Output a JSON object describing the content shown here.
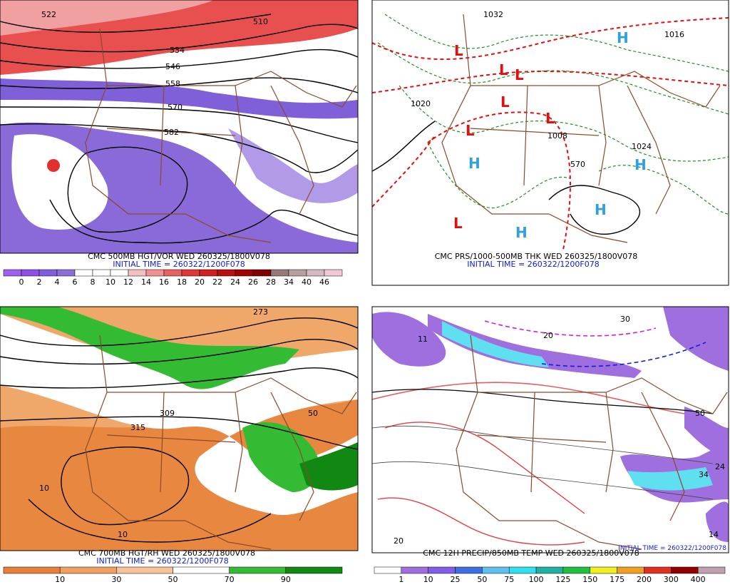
{
  "panels": [
    {
      "title": "CMC 500MB HGT/VOR WED 260325/1800V078",
      "initial_time": "INITIAL TIME = 260322/1200F078",
      "legend": {
        "colors": [
          "#9f5fef",
          "#8f4fe7",
          "#7f5fdf",
          "#8a6fd8",
          "#ffffff",
          "#ffffff",
          "#ffffff",
          "#f2c0c0",
          "#f09090",
          "#e86060",
          "#e03838",
          "#d02020",
          "#b81010",
          "#a00000",
          "#800000",
          "#987878",
          "#b8a0a0",
          "#d8b8c0",
          "#f0c8d8"
        ],
        "labels": [
          0,
          2,
          4,
          6,
          8,
          10,
          12,
          14,
          16,
          18,
          20,
          22,
          24,
          26,
          28,
          34,
          40,
          46
        ]
      },
      "map_labels": [
        "522",
        "510",
        "534",
        "546",
        "558",
        "570",
        "582"
      ]
    },
    {
      "title": "CMC PRS/1000-500MB THK WED 260325/1800V078",
      "initial_time": "INITIAL TIME = 260322/1200F078",
      "map_labels": [
        "L",
        "L",
        "L",
        "L",
        "L",
        "L",
        "L",
        "H",
        "H",
        "H",
        "H",
        "H",
        "1032",
        "1016",
        "1024",
        "1008",
        "570",
        "1020"
      ]
    },
    {
      "title": "CMC 700MB HGT/RH WED 260325/1800V078",
      "initial_time": "INITIAL TIME = 260322/1200F078",
      "legend": {
        "colors": [
          "#e8803a",
          "#f0a060",
          "#f7c49a",
          "#ffffff",
          "#33bb33",
          "#118811"
        ],
        "labels": [
          10,
          30,
          50,
          70,
          90
        ]
      },
      "map_labels": [
        "273",
        "309",
        "315",
        "50",
        "10",
        "10"
      ]
    },
    {
      "title": "CMC 12H PRECIP/850MB TEMP WED 260325/1800V078",
      "initial_time": "INITIAL TIME = 260322/1200F078",
      "legend": {
        "colors": [
          "#ffffff",
          "#9f6fe0",
          "#7f5fe8",
          "#3f6fe0",
          "#5fbfef",
          "#30e0f0",
          "#20b0a0",
          "#20c040",
          "#f0f020",
          "#f0a020",
          "#e03020",
          "#900000",
          "#c0a0b0"
        ],
        "labels": [
          1,
          10,
          25,
          50,
          75,
          100,
          125,
          150,
          175,
          200,
          300,
          400
        ]
      },
      "map_labels": [
        "11",
        "20",
        "30",
        "24",
        "34",
        "14",
        "20",
        "50"
      ]
    }
  ]
}
